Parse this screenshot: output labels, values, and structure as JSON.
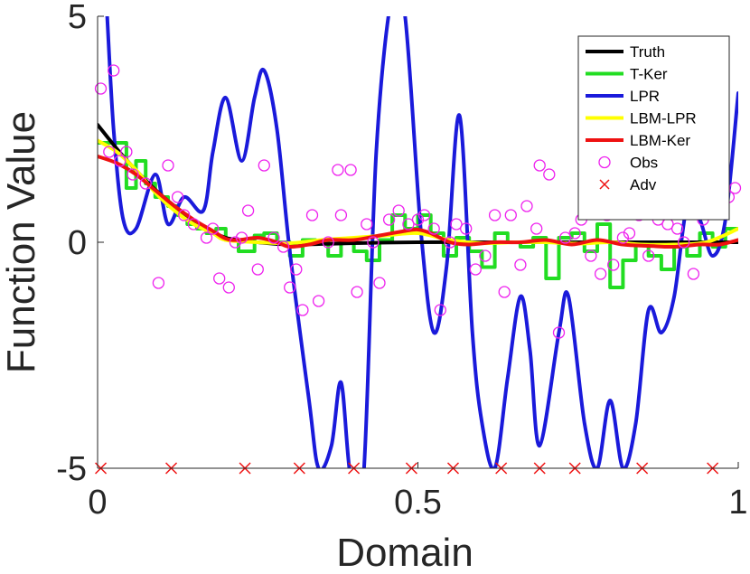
{
  "chart_data": {
    "type": "line",
    "title": "",
    "xlabel": "Domain",
    "ylabel": "Function Value",
    "xlim": [
      0,
      1
    ],
    "ylim": [
      -5,
      5
    ],
    "xticks": [
      0,
      0.5,
      1
    ],
    "xtick_labels": [
      "0",
      "0.5",
      "1"
    ],
    "yticks": [
      -5,
      0,
      5
    ],
    "ytick_labels": [
      "-5",
      "0",
      "5"
    ],
    "grid": false,
    "legend_position": "top-right",
    "series": [
      {
        "name": "Truth",
        "kind": "line",
        "color": "#000000",
        "x": [
          0,
          0.04,
          0.08,
          0.12,
          0.16,
          0.2,
          0.25,
          0.3,
          0.4,
          0.5,
          0.6,
          0.7,
          0.8,
          0.9,
          1.0
        ],
        "y": [
          2.6,
          1.9,
          1.3,
          0.8,
          0.4,
          0.1,
          0.0,
          -0.05,
          -0.02,
          0.0,
          0.0,
          0.0,
          0.0,
          0.0,
          0.0
        ]
      },
      {
        "name": "T-Ker",
        "kind": "step",
        "color": "#22dd22",
        "x": [
          0,
          0.025,
          0.045,
          0.06,
          0.075,
          0.09,
          0.11,
          0.125,
          0.14,
          0.155,
          0.17,
          0.185,
          0.2,
          0.22,
          0.245,
          0.26,
          0.28,
          0.3,
          0.32,
          0.34,
          0.36,
          0.38,
          0.4,
          0.42,
          0.44,
          0.46,
          0.48,
          0.5,
          0.52,
          0.54,
          0.56,
          0.58,
          0.6,
          0.62,
          0.64,
          0.66,
          0.68,
          0.7,
          0.72,
          0.74,
          0.76,
          0.78,
          0.8,
          0.82,
          0.84,
          0.86,
          0.88,
          0.9,
          0.92,
          0.94,
          0.96,
          0.98,
          1.0
        ],
        "y": [
          2.2,
          2.2,
          1.2,
          1.8,
          1.3,
          1.0,
          0.8,
          0.6,
          0.4,
          0.3,
          0.2,
          0.3,
          0.05,
          -0.2,
          0.15,
          0.2,
          0.0,
          -0.3,
          0.05,
          0.0,
          -0.3,
          0.0,
          -0.2,
          -0.4,
          0.05,
          0.6,
          0.3,
          0.6,
          0.2,
          -0.3,
          0.1,
          -0.2,
          -0.55,
          0.2,
          0.0,
          -0.1,
          0.1,
          -0.8,
          0.1,
          0.2,
          -0.2,
          0.4,
          -1.0,
          -0.4,
          0.0,
          -0.3,
          -0.6,
          -0.1,
          -0.3,
          0.2,
          -0.1,
          0.3,
          0.3
        ]
      },
      {
        "name": "LPR",
        "kind": "line",
        "color": "#1a1adb",
        "x": [
          0.015,
          0.025,
          0.04,
          0.06,
          0.09,
          0.11,
          0.135,
          0.165,
          0.18,
          0.2,
          0.225,
          0.245,
          0.26,
          0.28,
          0.3,
          0.33,
          0.345,
          0.365,
          0.38,
          0.395,
          0.415,
          0.435,
          0.46,
          0.48,
          0.505,
          0.525,
          0.545,
          0.565,
          0.585,
          0.6,
          0.62,
          0.64,
          0.66,
          0.675,
          0.69,
          0.72,
          0.735,
          0.76,
          0.78,
          0.8,
          0.82,
          0.84,
          0.86,
          0.88,
          0.9,
          0.92,
          0.94,
          0.96,
          0.98,
          1.0
        ],
        "y": [
          5.0,
          2.5,
          0.5,
          0.3,
          1.5,
          0.4,
          1.0,
          0.7,
          2.0,
          3.2,
          1.8,
          3.2,
          3.8,
          2.5,
          -0.2,
          -3.5,
          -5.0,
          -4.5,
          -3.1,
          -5.2,
          -5.2,
          2.0,
          5.5,
          5.0,
          0.2,
          -2.0,
          -0.5,
          2.8,
          -2.0,
          -4.0,
          -5.0,
          -3.0,
          -1.2,
          -2.4,
          -4.5,
          -2.0,
          -1.2,
          -4.0,
          -5.0,
          -3.5,
          -5.0,
          -4.0,
          -1.5,
          -2.0,
          -1.2,
          0.8,
          0.5,
          -0.3,
          0.5,
          3.3
        ]
      },
      {
        "name": "LBM-LPR",
        "kind": "line",
        "color": "#ffff00",
        "x": [
          0,
          0.03,
          0.06,
          0.09,
          0.12,
          0.15,
          0.18,
          0.2,
          0.25,
          0.3,
          0.35,
          0.4,
          0.45,
          0.5,
          0.55,
          0.6,
          0.65,
          0.7,
          0.75,
          0.8,
          0.85,
          0.9,
          0.95,
          1.0
        ],
        "y": [
          2.25,
          2.0,
          1.6,
          1.1,
          0.7,
          0.4,
          0.2,
          0.05,
          0.0,
          -0.02,
          0.05,
          0.1,
          0.15,
          0.2,
          0.05,
          -0.02,
          0.0,
          0.0,
          -0.03,
          0.0,
          -0.05,
          -0.05,
          0.0,
          0.3
        ]
      },
      {
        "name": "LBM-Ker",
        "kind": "line",
        "color": "#ee1111",
        "x": [
          0,
          0.03,
          0.06,
          0.09,
          0.12,
          0.15,
          0.18,
          0.2,
          0.22,
          0.25,
          0.28,
          0.3,
          0.33,
          0.36,
          0.4,
          0.44,
          0.48,
          0.5,
          0.52,
          0.55,
          0.58,
          0.62,
          0.66,
          0.7,
          0.74,
          0.78,
          0.82,
          0.86,
          0.9,
          0.94,
          0.97,
          1.0
        ],
        "y": [
          1.9,
          1.75,
          1.5,
          1.15,
          0.8,
          0.5,
          0.25,
          0.08,
          0.05,
          0.1,
          0.0,
          -0.1,
          -0.05,
          0.05,
          0.05,
          0.15,
          0.25,
          0.28,
          0.2,
          0.0,
          -0.05,
          0.0,
          0.0,
          0.05,
          -0.05,
          0.05,
          -0.05,
          -0.08,
          -0.1,
          -0.05,
          -0.05,
          0.05
        ]
      }
    ],
    "observations": {
      "name": "Obs",
      "color": "#ee22ee",
      "points": [
        [
          0.005,
          3.4
        ],
        [
          0.018,
          2.0
        ],
        [
          0.025,
          3.8
        ],
        [
          0.035,
          1.8
        ],
        [
          0.045,
          2.0
        ],
        [
          0.055,
          1.5
        ],
        [
          0.075,
          1.3
        ],
        [
          0.095,
          -0.9
        ],
        [
          0.11,
          1.7
        ],
        [
          0.125,
          1.0
        ],
        [
          0.135,
          0.6
        ],
        [
          0.15,
          0.4
        ],
        [
          0.17,
          0.1
        ],
        [
          0.18,
          0.3
        ],
        [
          0.19,
          -0.8
        ],
        [
          0.205,
          -1.0
        ],
        [
          0.215,
          0.0
        ],
        [
          0.225,
          0.1
        ],
        [
          0.235,
          0.7
        ],
        [
          0.25,
          -0.6
        ],
        [
          0.26,
          1.7
        ],
        [
          0.275,
          0.1
        ],
        [
          0.29,
          -0.1
        ],
        [
          0.3,
          -1.0
        ],
        [
          0.31,
          -0.6
        ],
        [
          0.32,
          -1.5
        ],
        [
          0.335,
          0.6
        ],
        [
          0.345,
          -1.3
        ],
        [
          0.36,
          0.0
        ],
        [
          0.375,
          1.6
        ],
        [
          0.38,
          0.6
        ],
        [
          0.395,
          1.6
        ],
        [
          0.405,
          -1.1
        ],
        [
          0.42,
          0.4
        ],
        [
          0.43,
          0.0
        ],
        [
          0.44,
          -0.9
        ],
        [
          0.455,
          0.5
        ],
        [
          0.47,
          0.7
        ],
        [
          0.485,
          0.4
        ],
        [
          0.5,
          0.5
        ],
        [
          0.51,
          0.6
        ],
        [
          0.525,
          0.3
        ],
        [
          0.535,
          -1.5
        ],
        [
          0.55,
          0.0
        ],
        [
          0.56,
          0.4
        ],
        [
          0.575,
          0.3
        ],
        [
          0.59,
          -0.6
        ],
        [
          0.605,
          -0.3
        ],
        [
          0.62,
          0.6
        ],
        [
          0.635,
          -1.1
        ],
        [
          0.645,
          0.6
        ],
        [
          0.66,
          -0.5
        ],
        [
          0.67,
          0.8
        ],
        [
          0.685,
          0.3
        ],
        [
          0.69,
          1.7
        ],
        [
          0.705,
          1.5
        ],
        [
          0.72,
          -2.0
        ],
        [
          0.73,
          0.1
        ],
        [
          0.745,
          0.2
        ],
        [
          0.755,
          0.5
        ],
        [
          0.77,
          -0.3
        ],
        [
          0.785,
          -0.7
        ],
        [
          0.795,
          0.6
        ],
        [
          0.805,
          -0.5
        ],
        [
          0.82,
          0.1
        ],
        [
          0.83,
          0.2
        ],
        [
          0.845,
          0.6
        ],
        [
          0.86,
          -0.3
        ],
        [
          0.875,
          0.5
        ],
        [
          0.89,
          0.4
        ],
        [
          0.905,
          0.3
        ],
        [
          0.915,
          0.0
        ],
        [
          0.93,
          -0.7
        ],
        [
          0.945,
          0.5
        ],
        [
          0.96,
          1.3
        ],
        [
          0.975,
          1.1
        ],
        [
          0.985,
          1.0
        ],
        [
          0.995,
          1.2
        ]
      ]
    },
    "adversarial": {
      "name": "Adv",
      "color": "#ee1111",
      "y": -5,
      "x": [
        0.005,
        0.115,
        0.23,
        0.315,
        0.4,
        0.49,
        0.555,
        0.63,
        0.69,
        0.745,
        0.85,
        0.96
      ]
    }
  }
}
